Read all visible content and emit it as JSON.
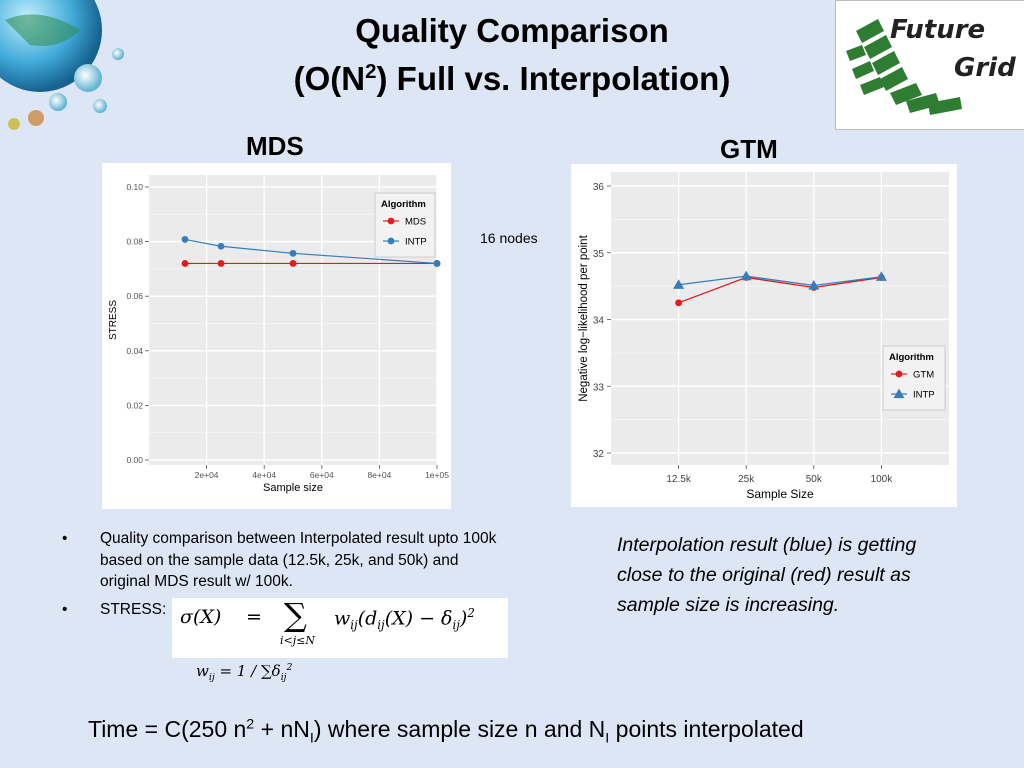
{
  "slide": {
    "title_line1": "Quality Comparison",
    "title_line2_pre": "(O(N",
    "title_line2_sup": "2",
    "title_line2_post": ") Full vs. Interpolation)",
    "logo_line1": "Future",
    "logo_line2": "Grid",
    "mds_heading": "MDS",
    "gtm_heading": "GTM",
    "nodes_note": "16 nodes",
    "bullets": [
      "Quality comparison between Interpolated result upto 100k based on the sample data (12.5k, 25k, and 50k) and original MDS result w/ 100k.",
      "STRESS:"
    ],
    "stress_formula": {
      "lhs": "σ(X)",
      "eq": "=",
      "sum": "∑",
      "sum_index": "i<j≤N",
      "rhs_pre": "w",
      "rhs_pre_sub": "ij",
      "rhs_mid": "(d",
      "rhs_mid_sub": "ij",
      "rhs_mid2": "(X) − δ",
      "rhs_mid2_sub": "ij",
      "rhs_end": ")",
      "rhs_sup": "2"
    },
    "weight_formula": {
      "w": "w",
      "w_sub": "ij",
      "rest": " = 1 / ∑δ",
      "d_sub": "ij",
      "d_sup": "2"
    },
    "italic_note": "Interpolation result (blue) is getting close to the original (red) result as sample size is increasing.",
    "time_line": {
      "a": "Time = C(250 n",
      "a_sup": "2",
      "b": " + nN",
      "b_sub": "I",
      "c": ") where sample size n and N",
      "c_sub": "I",
      "d": " points interpolated"
    }
  },
  "chart_data": [
    {
      "type": "line",
      "xlabel": "Sample size",
      "ylabel": "STRESS",
      "xlim": [
        0,
        100000
      ],
      "ylim": [
        0,
        0.1
      ],
      "x_ticks": [
        20000,
        40000,
        60000,
        80000,
        100000
      ],
      "x_tick_labels": [
        "2e+04",
        "4e+04",
        "6e+04",
        "8e+04",
        "1e+05"
      ],
      "y_ticks": [
        0,
        0.02,
        0.04,
        0.06,
        0.08,
        0.1
      ],
      "y_tick_labels": [
        "0.00",
        "0.02",
        "0.04",
        "0.06",
        "0.08",
        "0.10"
      ],
      "legend_title": "Algorithm",
      "legend_position": "top-right",
      "series": [
        {
          "name": "MDS",
          "color": "#e41a1c",
          "marker": "circle",
          "x": [
            12500,
            25000,
            50000,
            100000
          ],
          "y": [
            0.072,
            0.072,
            0.072,
            0.072
          ]
        },
        {
          "name": "INTP",
          "color": "#377eb8",
          "marker": "circle",
          "x": [
            12500,
            25000,
            50000,
            100000
          ],
          "y": [
            0.0808,
            0.0783,
            0.0757,
            0.072
          ]
        }
      ]
    },
    {
      "type": "line",
      "xlabel": "Sample Size",
      "ylabel": "Negative log−likelihood per point",
      "categories": [
        "12.5k",
        "25k",
        "50k",
        "100k"
      ],
      "ylim": [
        32,
        36
      ],
      "y_ticks": [
        32,
        33,
        34,
        35,
        36
      ],
      "y_tick_labels": [
        "32",
        "33",
        "34",
        "35",
        "36"
      ],
      "legend_title": "Algorithm",
      "legend_position": "right",
      "series": [
        {
          "name": "GTM",
          "color": "#e41a1c",
          "marker": "circle",
          "values": [
            34.25,
            34.63,
            34.48,
            34.63
          ]
        },
        {
          "name": "INTP",
          "color": "#377eb8",
          "marker": "triangle",
          "values": [
            34.52,
            34.65,
            34.51,
            34.64
          ]
        }
      ]
    }
  ]
}
